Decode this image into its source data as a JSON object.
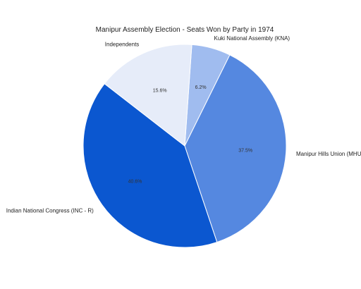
{
  "chart_data": {
    "type": "pie",
    "title": "Manipur Assembly Election - Seats Won by Party in 1974",
    "slices": [
      {
        "label": "Kuki National Assembly (KNA)",
        "value": 6.2,
        "display": "6.2%",
        "color": "#a0bcef"
      },
      {
        "label": "Manipur Hills Union (MHU)",
        "value": 37.5,
        "display": "37.5%",
        "color": "#5588e0"
      },
      {
        "label": "Indian National Congress (INC - R)",
        "value": 40.6,
        "display": "40.6%",
        "color": "#0b57d0"
      },
      {
        "label": "Independents",
        "value": 15.6,
        "display": "15.6%",
        "color": "#e6ecf9"
      }
    ],
    "legend": "none"
  }
}
